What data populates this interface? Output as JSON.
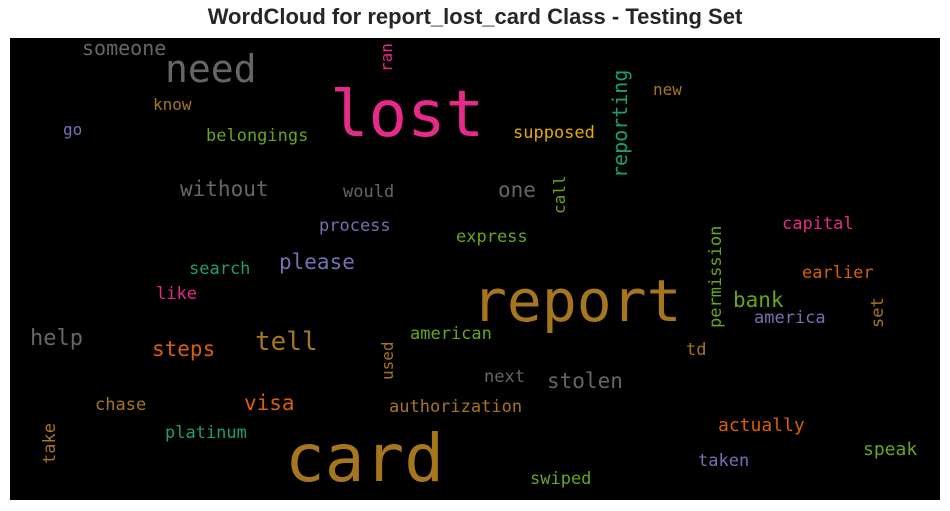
{
  "chart_data": {
    "type": "wordcloud",
    "title": "WordCloud for report_lost_card Class - Testing Set",
    "background": "#000000",
    "words": [
      {
        "text": "card",
        "color": "#a6761d"
      },
      {
        "text": "report",
        "color": "#a6761d"
      },
      {
        "text": "lost",
        "color": "#e7298a"
      },
      {
        "text": "need",
        "color": "#666666"
      },
      {
        "text": "someone",
        "color": "#666666"
      },
      {
        "text": "ran",
        "color": "#e7298a"
      },
      {
        "text": "reporting",
        "color": "#1b9e77"
      },
      {
        "text": "new",
        "color": "#a6761d"
      },
      {
        "text": "know",
        "color": "#a6761d"
      },
      {
        "text": "go",
        "color": "#7570b3"
      },
      {
        "text": "belongings",
        "color": "#66a61e"
      },
      {
        "text": "supposed",
        "color": "#e6ab02"
      },
      {
        "text": "without",
        "color": "#666666"
      },
      {
        "text": "would",
        "color": "#666666"
      },
      {
        "text": "one",
        "color": "#666666"
      },
      {
        "text": "call",
        "color": "#66a61e"
      },
      {
        "text": "process",
        "color": "#7570b3"
      },
      {
        "text": "express",
        "color": "#66a61e"
      },
      {
        "text": "permission",
        "color": "#66a61e"
      },
      {
        "text": "capital",
        "color": "#e7298a"
      },
      {
        "text": "search",
        "color": "#1b9e77"
      },
      {
        "text": "please",
        "color": "#7570b3"
      },
      {
        "text": "earlier",
        "color": "#d95f02"
      },
      {
        "text": "like",
        "color": "#e7298a"
      },
      {
        "text": "bank",
        "color": "#66a61e"
      },
      {
        "text": "america",
        "color": "#7570b3"
      },
      {
        "text": "set",
        "color": "#a6761d"
      },
      {
        "text": "help",
        "color": "#666666"
      },
      {
        "text": "tell",
        "color": "#a6761d"
      },
      {
        "text": "steps",
        "color": "#d95f02"
      },
      {
        "text": "american",
        "color": "#66a61e"
      },
      {
        "text": "used",
        "color": "#a6761d"
      },
      {
        "text": "td",
        "color": "#a6761d"
      },
      {
        "text": "next",
        "color": "#666666"
      },
      {
        "text": "stolen",
        "color": "#666666"
      },
      {
        "text": "visa",
        "color": "#d95f02"
      },
      {
        "text": "chase",
        "color": "#a6761d"
      },
      {
        "text": "authorization",
        "color": "#a6761d"
      },
      {
        "text": "take",
        "color": "#a6761d"
      },
      {
        "text": "platinum",
        "color": "#1b9e77"
      },
      {
        "text": "actually",
        "color": "#d95f02"
      },
      {
        "text": "speak",
        "color": "#66a61e"
      },
      {
        "text": "taken",
        "color": "#7570b3"
      },
      {
        "text": "swiped",
        "color": "#66a61e"
      }
    ]
  }
}
